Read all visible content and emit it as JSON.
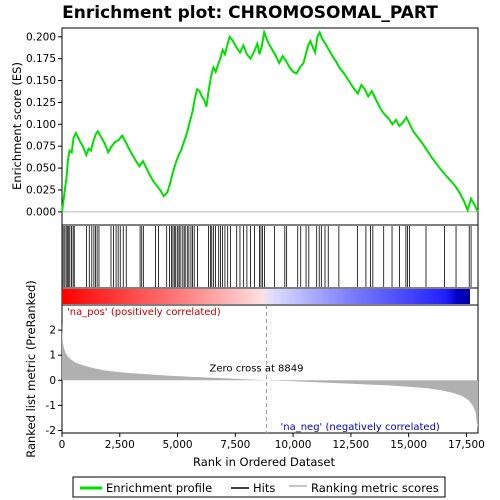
{
  "title": "Enrichment plot: CHROMOSOMAL_PART",
  "colors": {
    "es_line": "#00e000",
    "hits": "#000000",
    "metric_fill": "#b0b0b0",
    "pos_text": "#c00000",
    "neg_text": "#0000c0",
    "zero_line": "#a0a0a0"
  },
  "chart_data": [
    {
      "name": "enrichment-profile",
      "type": "line",
      "ylabel": "Enrichment score (ES)",
      "xlim": [
        0,
        18000
      ],
      "ylim": [
        -0.015,
        0.21
      ],
      "yticks": [
        0.0,
        0.025,
        0.05,
        0.075,
        0.1,
        0.125,
        0.15,
        0.175,
        0.2
      ],
      "ytick_labels": [
        "0.000",
        "0.025",
        "0.050",
        "0.075",
        "0.100",
        "0.125",
        "0.150",
        "0.175",
        "0.200"
      ],
      "grid": false,
      "series": [
        {
          "x": [
            0,
            60,
            120,
            200,
            260,
            330,
            420,
            500,
            600,
            750,
            900,
            1050,
            1150,
            1250,
            1350,
            1450,
            1550,
            1700,
            1850,
            2000,
            2150,
            2300,
            2450,
            2600,
            2750,
            2900,
            3050,
            3200,
            3350,
            3500,
            3650,
            3800,
            3950,
            4100,
            4250,
            4400,
            4550,
            4650,
            4750,
            4850,
            4950,
            5050,
            5150,
            5250,
            5350,
            5450,
            5550,
            5650,
            5750,
            5850,
            5950,
            6050,
            6150,
            6250,
            6350,
            6450,
            6550,
            6650,
            6750,
            6850,
            6950,
            7050,
            7150,
            7250,
            7400,
            7550,
            7700,
            7850,
            8000,
            8150,
            8300,
            8450,
            8550,
            8650,
            8750,
            8850,
            8950,
            9100,
            9250,
            9400,
            9550,
            9700,
            9850,
            10000,
            10150,
            10300,
            10450,
            10550,
            10650,
            10750,
            10850,
            10950,
            11050,
            11150,
            11250,
            11400,
            11550,
            11700,
            11850,
            12000,
            12200,
            12400,
            12600,
            12800,
            12950,
            13100,
            13250,
            13400,
            13550,
            13700,
            13850,
            14000,
            14150,
            14300,
            14450,
            14600,
            14750,
            14900,
            15050,
            15200,
            15400,
            15600,
            15800,
            16000,
            16200,
            16400,
            16600,
            16800,
            17000,
            17200,
            17400,
            17550,
            17700,
            17850,
            18000
          ],
          "y": [
            0.0,
            0.012,
            0.025,
            0.04,
            0.06,
            0.07,
            0.068,
            0.085,
            0.09,
            0.082,
            0.075,
            0.065,
            0.072,
            0.07,
            0.08,
            0.088,
            0.092,
            0.085,
            0.078,
            0.068,
            0.075,
            0.08,
            0.082,
            0.087,
            0.08,
            0.072,
            0.065,
            0.058,
            0.052,
            0.058,
            0.05,
            0.042,
            0.035,
            0.03,
            0.025,
            0.018,
            0.022,
            0.03,
            0.04,
            0.05,
            0.058,
            0.065,
            0.07,
            0.078,
            0.085,
            0.095,
            0.105,
            0.115,
            0.13,
            0.14,
            0.138,
            0.132,
            0.128,
            0.12,
            0.14,
            0.155,
            0.165,
            0.16,
            0.168,
            0.175,
            0.185,
            0.18,
            0.19,
            0.2,
            0.195,
            0.188,
            0.182,
            0.19,
            0.18,
            0.175,
            0.182,
            0.192,
            0.18,
            0.19,
            0.205,
            0.198,
            0.192,
            0.185,
            0.178,
            0.17,
            0.178,
            0.172,
            0.165,
            0.16,
            0.158,
            0.165,
            0.17,
            0.18,
            0.19,
            0.195,
            0.188,
            0.182,
            0.2,
            0.205,
            0.198,
            0.192,
            0.185,
            0.178,
            0.172,
            0.165,
            0.158,
            0.15,
            0.142,
            0.135,
            0.145,
            0.14,
            0.132,
            0.138,
            0.13,
            0.122,
            0.115,
            0.11,
            0.106,
            0.1,
            0.105,
            0.098,
            0.102,
            0.108,
            0.1,
            0.092,
            0.085,
            0.078,
            0.07,
            0.062,
            0.055,
            0.048,
            0.042,
            0.036,
            0.03,
            0.022,
            0.012,
            0.002,
            0.015,
            0.008,
            0.0
          ]
        }
      ]
    },
    {
      "name": "hits",
      "type": "scatter",
      "xlim": [
        0,
        18000
      ],
      "hit_positions": [
        50,
        120,
        180,
        230,
        290,
        340,
        410,
        480,
        530,
        1060,
        1180,
        1290,
        1380,
        1450,
        1520,
        1600,
        2120,
        2230,
        2340,
        2430,
        2520,
        2650,
        2780,
        3380,
        3450,
        3520,
        4050,
        4180,
        4530,
        4650,
        4740,
        4800,
        4860,
        4920,
        4990,
        5060,
        5110,
        5200,
        5280,
        5330,
        5420,
        5490,
        5580,
        5650,
        5720,
        5860,
        6340,
        6420,
        6480,
        6550,
        6640,
        6780,
        6860,
        6950,
        7050,
        7170,
        7290,
        7560,
        7700,
        7860,
        8000,
        8160,
        8330,
        8550,
        8610,
        8680,
        8760,
        9200,
        9640,
        9720,
        10200,
        10330,
        10560,
        10680,
        11020,
        11130,
        11220,
        11380,
        11520,
        11980,
        12780,
        13150,
        13350,
        13450,
        13920,
        14280,
        14600,
        14880,
        14950,
        15040,
        15750,
        16550,
        17050,
        17620,
        17700
      ]
    },
    {
      "name": "ranking-metric",
      "type": "area",
      "ylabel": "Ranked list metric (PreRanked)",
      "xlabel": "Rank in Ordered Dataset",
      "xlim": [
        0,
        18000
      ],
      "ylim": [
        -2.1,
        3.0
      ],
      "yticks": [
        -2,
        -1,
        0,
        1,
        2
      ],
      "ytick_labels": [
        "-2",
        "-1",
        "0",
        "1",
        "2"
      ],
      "xticks": [
        0,
        2500,
        5000,
        7500,
        10000,
        12500,
        15000,
        17500
      ],
      "xtick_labels": [
        "0",
        "2,500",
        "5,000",
        "7,500",
        "10,000",
        "12,500",
        "15,000",
        "17,500"
      ],
      "zero_cross": 8849,
      "zero_cross_label": "Zero cross at 8849",
      "pos_label": "'na_pos' (positively correlated)",
      "neg_label": "'na_neg' (negatively correlated)",
      "x": [
        0,
        30,
        80,
        150,
        250,
        400,
        600,
        900,
        1300,
        1800,
        2500,
        3500,
        4500,
        5500,
        6500,
        7500,
        8849,
        10000,
        11000,
        12000,
        13000,
        14000,
        15000,
        15800,
        16400,
        16900,
        17300,
        17600,
        17800,
        17900,
        17950,
        18000
      ],
      "values": [
        2.3,
        1.55,
        1.3,
        1.1,
        0.95,
        0.82,
        0.7,
        0.6,
        0.5,
        0.4,
        0.32,
        0.25,
        0.19,
        0.14,
        0.1,
        0.06,
        0.0,
        -0.04,
        -0.08,
        -0.12,
        -0.16,
        -0.2,
        -0.26,
        -0.32,
        -0.4,
        -0.5,
        -0.62,
        -0.8,
        -1.05,
        -1.3,
        -1.7,
        -1.9
      ]
    }
  ],
  "legend": {
    "items": [
      {
        "label": "Enrichment profile",
        "swatch_color": "#00e000"
      },
      {
        "label": "Hits",
        "swatch_color": "#000000"
      },
      {
        "label": "Ranking metric scores",
        "swatch_color": "#b0b0b0"
      }
    ]
  }
}
